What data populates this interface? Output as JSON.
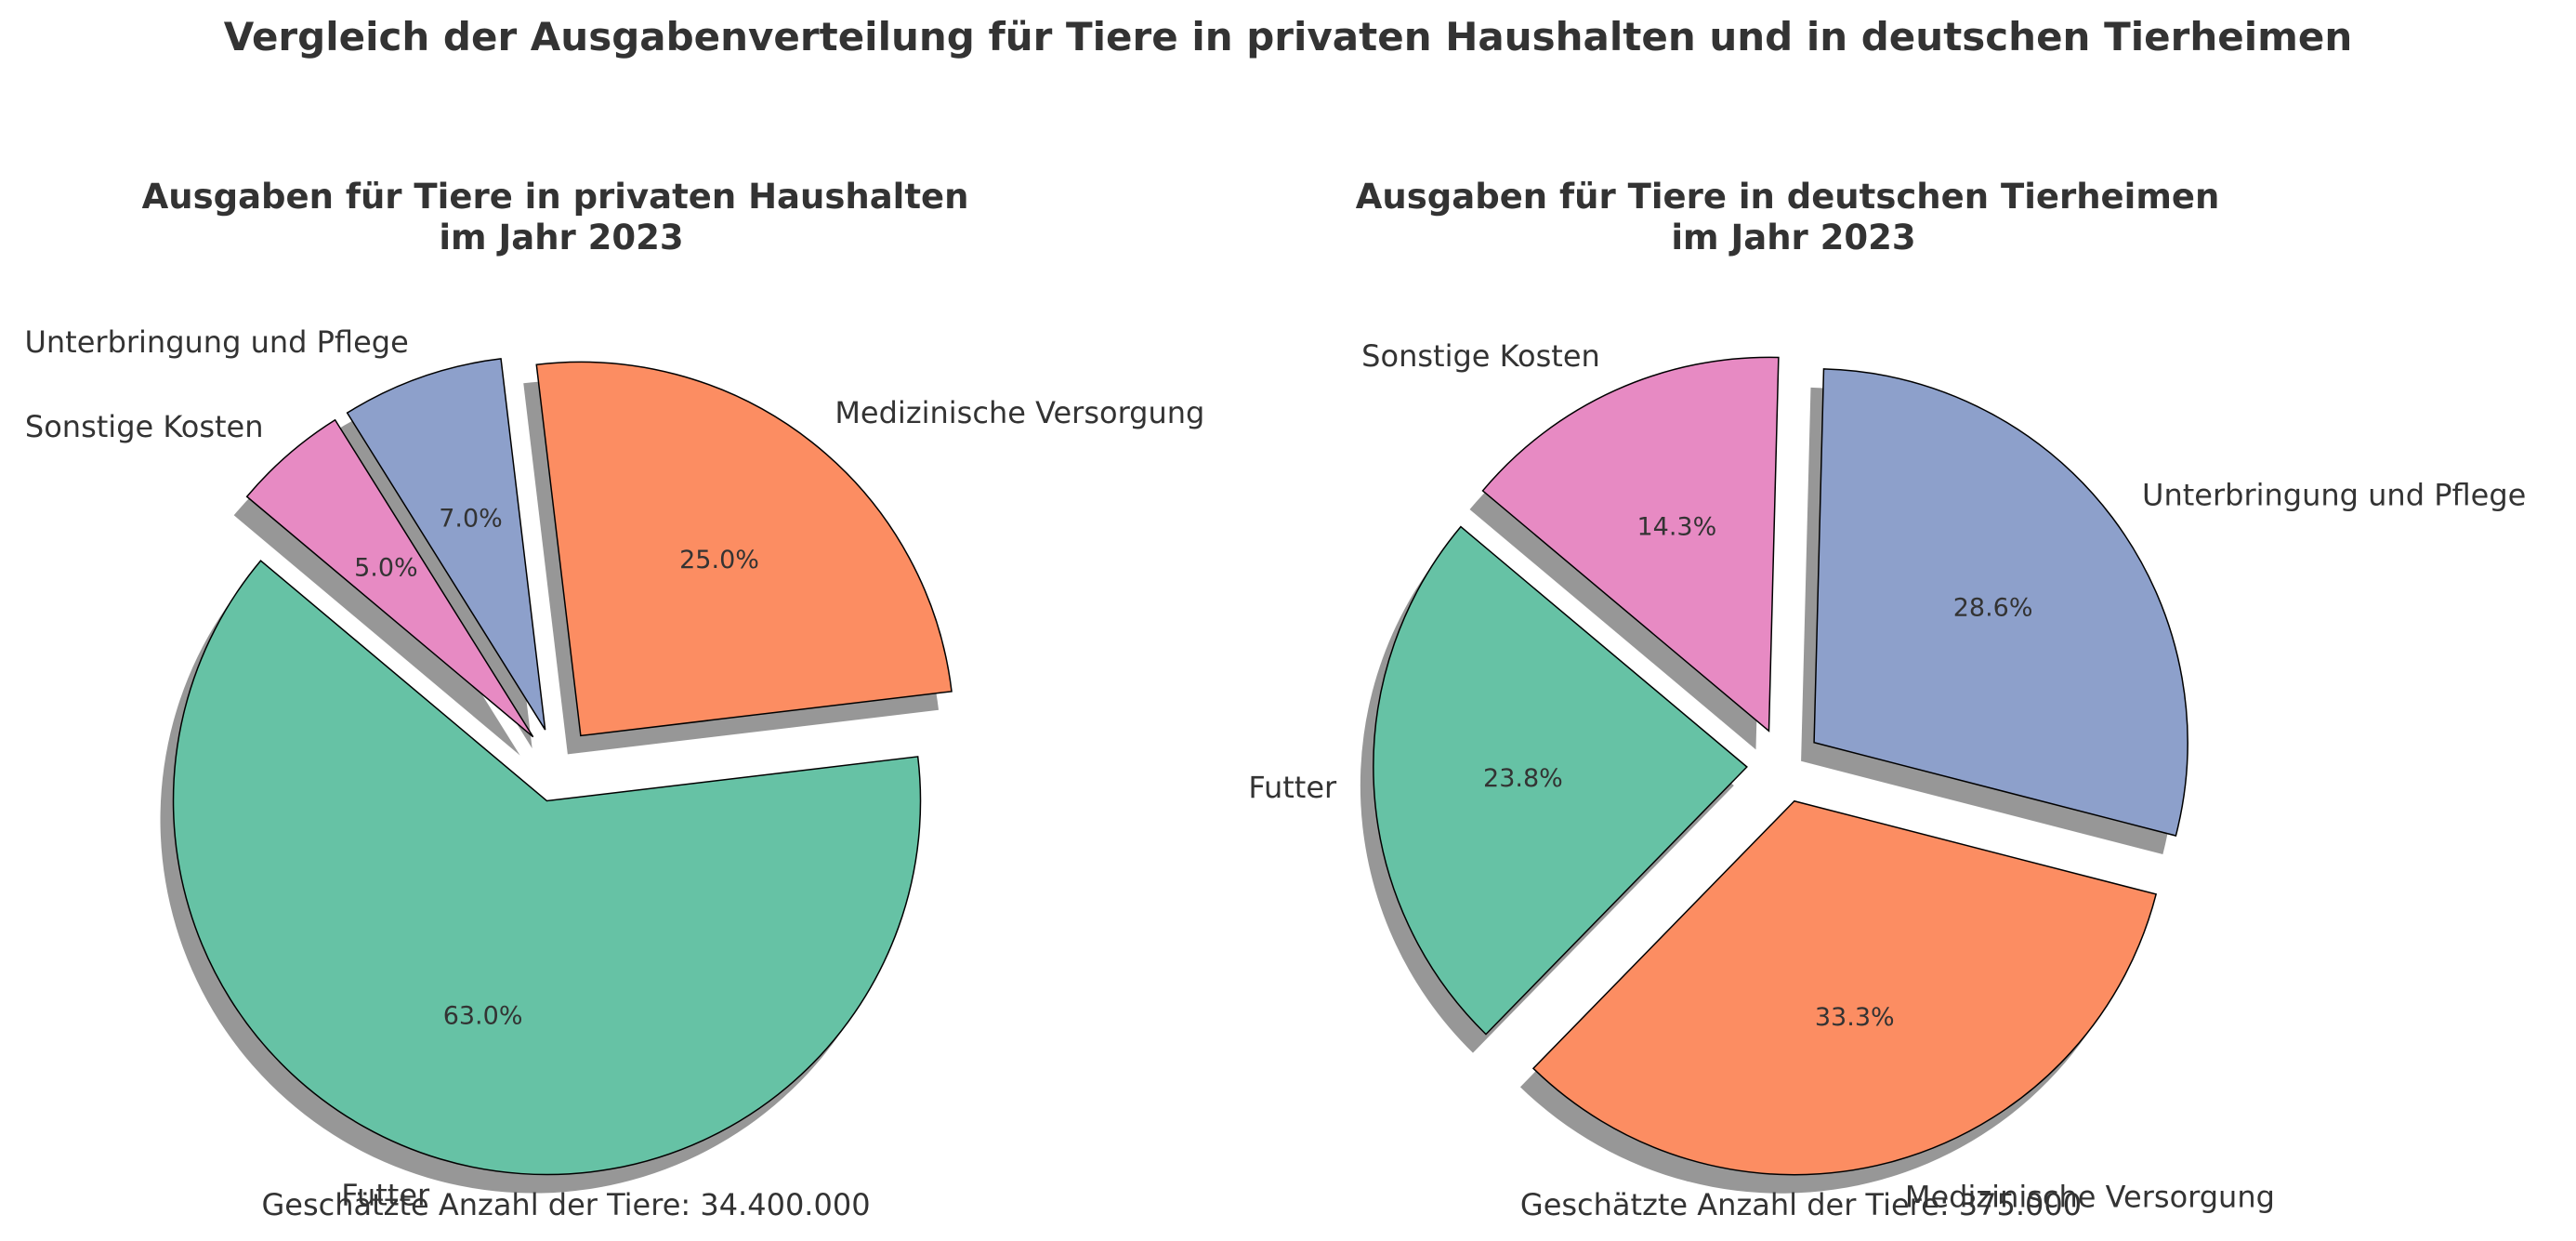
{
  "title": "Vergleich der Ausgabenverteilung für Tiere in privaten Haushalten und in deutschen Tierheimen",
  "chart_data": [
    {
      "type": "pie",
      "title": [
        "Ausgaben für Tiere in privaten Haushalten",
        "im Jahr 2023"
      ],
      "footer": "Geschätzte Anzahl der Tiere: 34.400.000",
      "start_angle_deg": 140,
      "direction": "counterclockwise",
      "shadow": true,
      "slices": [
        {
          "label": "Futter",
          "value": 63.0,
          "pct_label": "63.0%",
          "color": "#66c2a5",
          "exploded": true
        },
        {
          "label": "Medizinische Versorgung",
          "value": 25.0,
          "pct_label": "25.0%",
          "color": "#fc8d62",
          "exploded": true
        },
        {
          "label": "Unterbringung und Pflege",
          "value": 7.0,
          "pct_label": "7.0%",
          "color": "#8da0cb",
          "exploded": true
        },
        {
          "label": "Sonstige Kosten",
          "value": 5.0,
          "pct_label": "5.0%",
          "color": "#e78ac3",
          "exploded": true
        }
      ]
    },
    {
      "type": "pie",
      "title": [
        "Ausgaben für Tiere in deutschen Tierheimen",
        "im Jahr 2023"
      ],
      "footer": "Geschätzte Anzahl der Tiere: 375.000",
      "start_angle_deg": 140,
      "direction": "counterclockwise",
      "shadow": true,
      "slices": [
        {
          "label": "Futter",
          "value": 23.8,
          "pct_label": "23.8%",
          "color": "#66c2a5",
          "exploded": true
        },
        {
          "label": "Medizinische Versorgung",
          "value": 33.3,
          "pct_label": "33.3%",
          "color": "#fc8d62",
          "exploded": true
        },
        {
          "label": "Unterbringung und Pflege",
          "value": 28.6,
          "pct_label": "28.6%",
          "color": "#8da0cb",
          "exploded": true
        },
        {
          "label": "Sonstige Kosten",
          "value": 14.3,
          "pct_label": "14.3%",
          "color": "#e78ac3",
          "exploded": true
        }
      ]
    }
  ]
}
